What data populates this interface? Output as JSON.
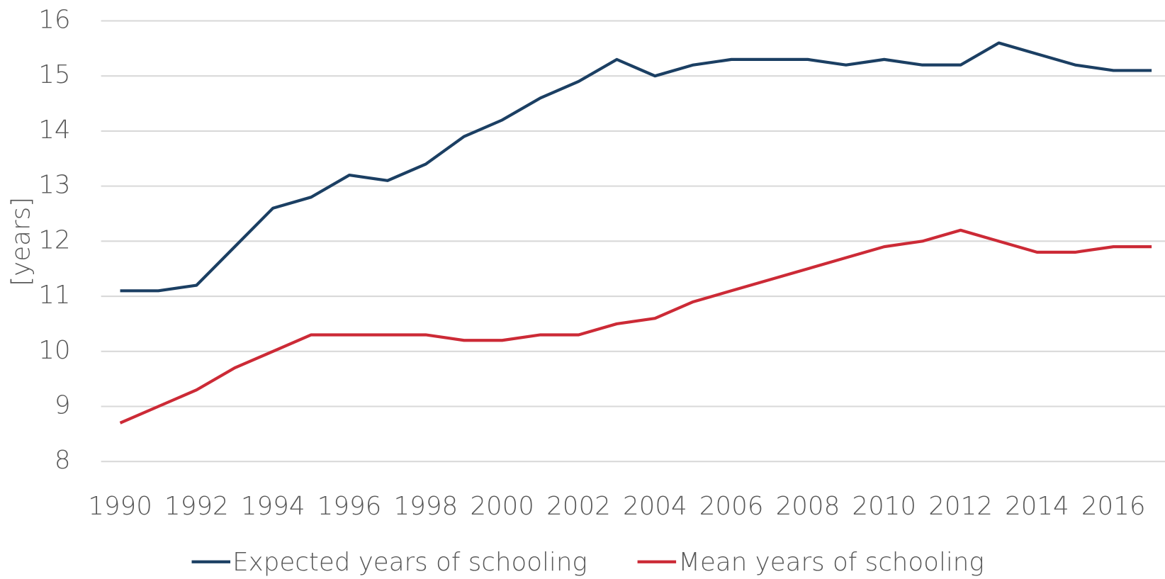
{
  "chart_data": {
    "type": "line",
    "y_label": "[years]",
    "x": [
      1990,
      1991,
      1992,
      1993,
      1994,
      1995,
      1996,
      1997,
      1998,
      1999,
      2000,
      2001,
      2002,
      2003,
      2004,
      2005,
      2006,
      2007,
      2008,
      2009,
      2010,
      2011,
      2012,
      2013,
      2014,
      2015,
      2016,
      2017
    ],
    "series": [
      {
        "name": "Expected years of schooling",
        "color": "#1b3f63",
        "values": [
          11.1,
          11.1,
          11.2,
          11.9,
          12.6,
          12.8,
          13.2,
          13.1,
          13.4,
          13.9,
          14.2,
          14.6,
          14.9,
          15.3,
          15.0,
          15.2,
          15.3,
          15.3,
          15.3,
          15.2,
          15.3,
          15.2,
          15.2,
          15.6,
          15.4,
          15.2,
          15.1,
          15.1
        ]
      },
      {
        "name": "Mean years of schooling",
        "color": "#cc2a36",
        "values": [
          8.7,
          9.0,
          9.3,
          9.7,
          10.0,
          10.3,
          10.3,
          10.3,
          10.3,
          10.2,
          10.2,
          10.3,
          10.3,
          10.5,
          10.6,
          10.9,
          11.1,
          11.3,
          11.5,
          11.7,
          11.9,
          12.0,
          12.2,
          12.0,
          11.8,
          11.8,
          11.9,
          11.9
        ]
      }
    ],
    "xlim": [
      1989.5,
      2017.35
    ],
    "xticks": [
      1990,
      1992,
      1994,
      1996,
      1998,
      2000,
      2002,
      2004,
      2006,
      2008,
      2010,
      2012,
      2014,
      2016
    ],
    "ylim": [
      8,
      16
    ],
    "yticks": [
      8,
      9,
      10,
      11,
      12,
      13,
      14,
      15,
      16
    ],
    "grid": true,
    "legend": "bottom"
  }
}
